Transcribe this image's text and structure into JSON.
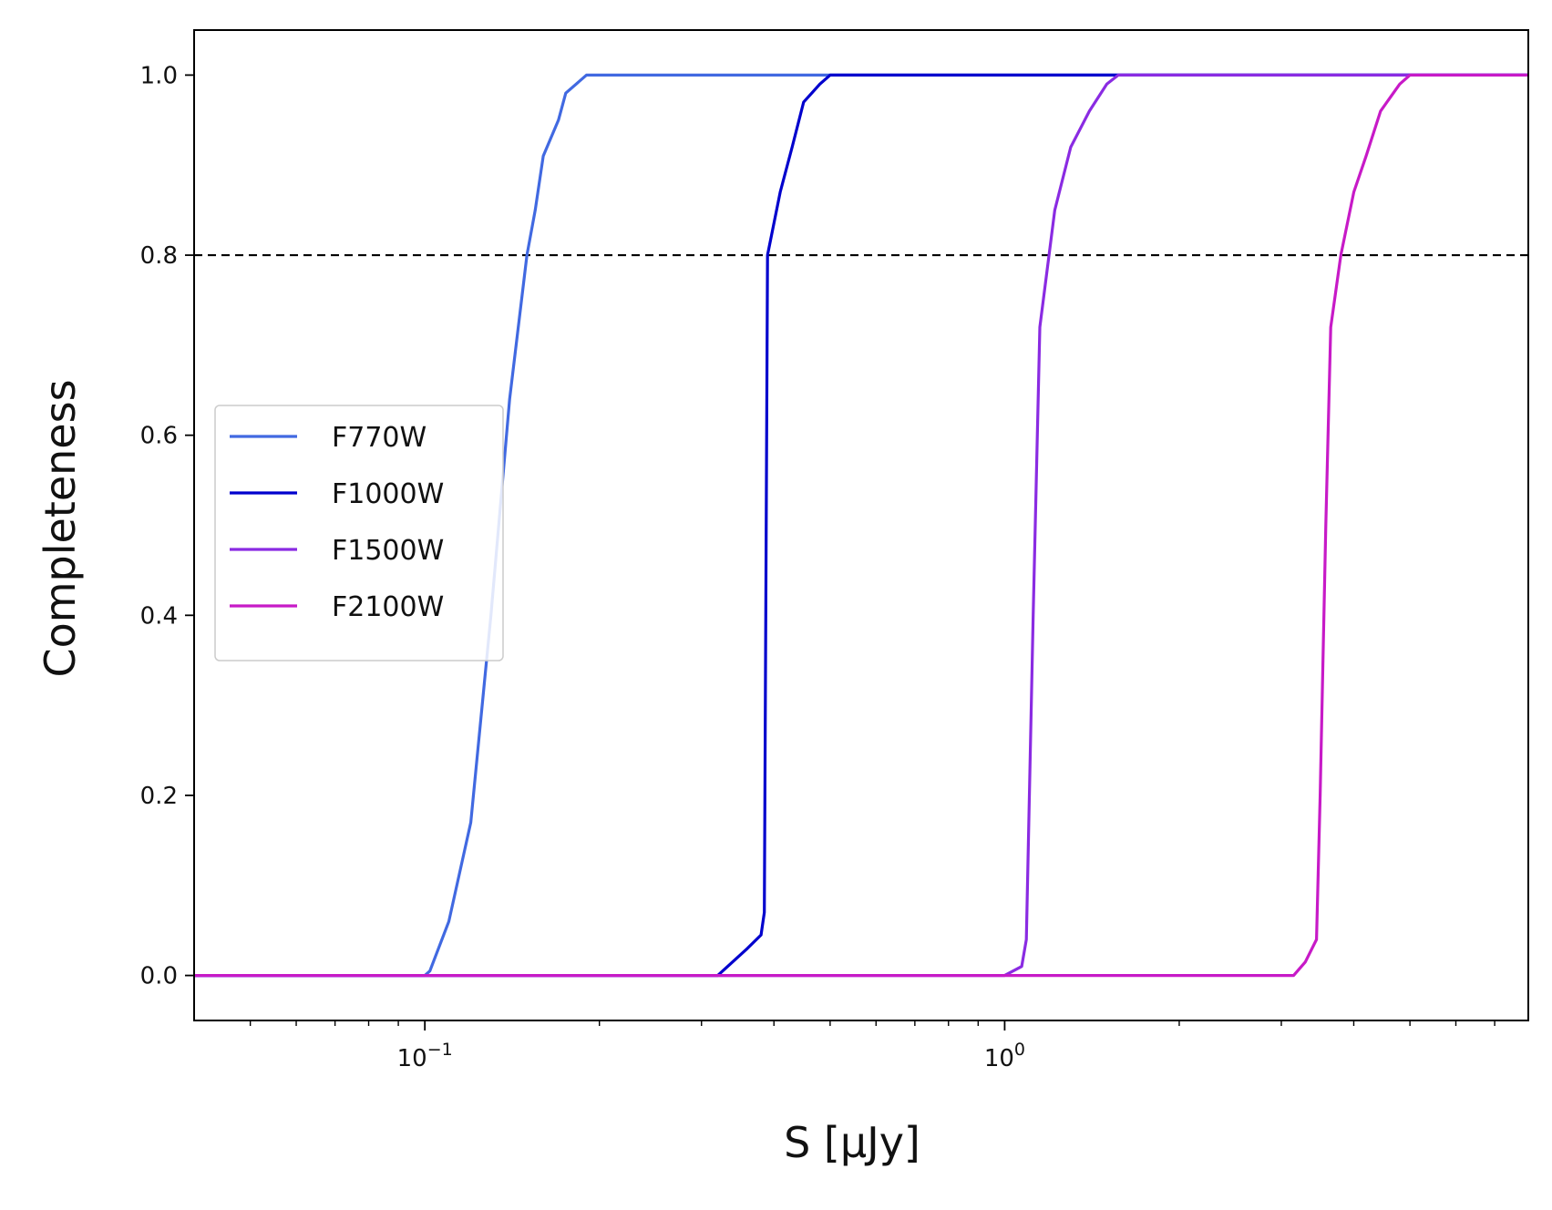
{
  "chart_data": {
    "type": "line",
    "xscale": "log",
    "xlabel": "S [μJy]",
    "ylabel": "Completeness",
    "xlim": [
      0.04,
      8.0
    ],
    "ylim": [
      -0.05,
      1.05
    ],
    "y_ticks": [
      {
        "value": 0.0,
        "label": "0.0"
      },
      {
        "value": 0.2,
        "label": "0.2"
      },
      {
        "value": 0.4,
        "label": "0.4"
      },
      {
        "value": 0.6,
        "label": "0.6"
      },
      {
        "value": 0.8,
        "label": "0.8"
      },
      {
        "value": 1.0,
        "label": "1.0"
      }
    ],
    "x_major_ticks": [
      {
        "value": 0.1,
        "base": "10",
        "exp": "−1"
      },
      {
        "value": 1.0,
        "base": "10",
        "exp": "0"
      }
    ],
    "grid": false,
    "legend_position": "center-left",
    "reference_lines": [
      {
        "y": 0.8,
        "style": "dashed",
        "color": "#000000"
      }
    ],
    "series": [
      {
        "name": "F770W",
        "color": "#4169e1",
        "points": [
          [
            0.04,
            0.0
          ],
          [
            0.1,
            0.0
          ],
          [
            0.102,
            0.005
          ],
          [
            0.11,
            0.06
          ],
          [
            0.12,
            0.17
          ],
          [
            0.13,
            0.4
          ],
          [
            0.14,
            0.64
          ],
          [
            0.15,
            0.8
          ],
          [
            0.155,
            0.85
          ],
          [
            0.16,
            0.91
          ],
          [
            0.17,
            0.95
          ],
          [
            0.175,
            0.98
          ],
          [
            0.19,
            1.0
          ],
          [
            8.0,
            1.0
          ]
        ]
      },
      {
        "name": "F1000W",
        "color": "#0000cd",
        "points": [
          [
            0.04,
            0.0
          ],
          [
            0.32,
            0.0
          ],
          [
            0.36,
            0.03
          ],
          [
            0.38,
            0.045
          ],
          [
            0.385,
            0.07
          ],
          [
            0.39,
            0.8
          ],
          [
            0.41,
            0.87
          ],
          [
            0.43,
            0.92
          ],
          [
            0.45,
            0.97
          ],
          [
            0.48,
            0.99
          ],
          [
            0.5,
            1.0
          ],
          [
            8.0,
            1.0
          ]
        ]
      },
      {
        "name": "F1500W",
        "color": "#8a2be2",
        "points": [
          [
            0.04,
            0.0
          ],
          [
            1.0,
            0.0
          ],
          [
            1.07,
            0.01
          ],
          [
            1.09,
            0.04
          ],
          [
            1.12,
            0.4
          ],
          [
            1.15,
            0.72
          ],
          [
            1.22,
            0.85
          ],
          [
            1.3,
            0.92
          ],
          [
            1.4,
            0.96
          ],
          [
            1.5,
            0.99
          ],
          [
            1.57,
            1.0
          ],
          [
            8.0,
            1.0
          ]
        ]
      },
      {
        "name": "F2100W",
        "color": "#c71ac7",
        "points": [
          [
            0.04,
            0.0
          ],
          [
            3.15,
            0.0
          ],
          [
            3.3,
            0.015
          ],
          [
            3.45,
            0.04
          ],
          [
            3.5,
            0.2
          ],
          [
            3.58,
            0.5
          ],
          [
            3.65,
            0.72
          ],
          [
            3.8,
            0.8
          ],
          [
            4.0,
            0.87
          ],
          [
            4.2,
            0.91
          ],
          [
            4.45,
            0.96
          ],
          [
            4.8,
            0.99
          ],
          [
            5.0,
            1.0
          ],
          [
            8.0,
            1.0
          ]
        ]
      }
    ]
  }
}
